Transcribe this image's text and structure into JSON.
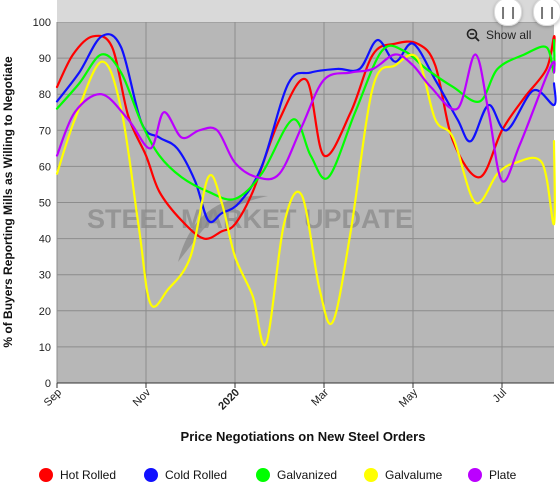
{
  "chart_data": {
    "type": "line",
    "ylabel": "% of Buyers Reporting Mills as Willing to Negotiate",
    "xlabel": "Price Negotiations on New Steel Orders",
    "watermark": "STEEL MARKET UPDATE",
    "ylim": [
      0,
      100
    ],
    "yticks": [
      0,
      10,
      20,
      30,
      40,
      50,
      60,
      70,
      80,
      90,
      100
    ],
    "xticks": [
      "Sep",
      "Nov",
      "2020",
      "Mar",
      "May",
      "Jul"
    ],
    "grid": true,
    "legend_position": "bottom",
    "colors": {
      "Hot Rolled": "#ff0000",
      "Cold Rolled": "#1010ff",
      "Galvanized": "#00ff00",
      "Galvalume": "#ffff00",
      "Plate": "#bb00ff"
    },
    "series": [
      {
        "name": "Hot Rolled",
        "values": [
          [
            0,
            82
          ],
          [
            0.18,
            91
          ],
          [
            0.4,
            96
          ],
          [
            0.62,
            93
          ],
          [
            0.8,
            74
          ],
          [
            1.0,
            63
          ],
          [
            1.15,
            53
          ],
          [
            1.4,
            45
          ],
          [
            1.65,
            40
          ],
          [
            1.85,
            42
          ],
          [
            2.0,
            44
          ],
          [
            2.2,
            53
          ],
          [
            2.5,
            73
          ],
          [
            2.8,
            84
          ],
          [
            3.0,
            63
          ],
          [
            3.3,
            75
          ],
          [
            3.55,
            91
          ],
          [
            3.8,
            94
          ],
          [
            4.05,
            94
          ],
          [
            4.25,
            88
          ],
          [
            4.45,
            67
          ],
          [
            4.75,
            57
          ],
          [
            5.0,
            70
          ],
          [
            5.25,
            79
          ],
          [
            5.5,
            87
          ],
          [
            5.75,
            96
          ],
          [
            5.92,
            92
          ]
        ]
      },
      {
        "name": "Cold Rolled",
        "values": [
          [
            0,
            78
          ],
          [
            0.25,
            86
          ],
          [
            0.5,
            96
          ],
          [
            0.72,
            93
          ],
          [
            0.95,
            72
          ],
          [
            1.15,
            68
          ],
          [
            1.35,
            65
          ],
          [
            1.55,
            56
          ],
          [
            1.7,
            45
          ],
          [
            1.85,
            47
          ],
          [
            2.05,
            50
          ],
          [
            2.3,
            60
          ],
          [
            2.6,
            83
          ],
          [
            2.85,
            86
          ],
          [
            3.15,
            87
          ],
          [
            3.4,
            87
          ],
          [
            3.6,
            95
          ],
          [
            3.8,
            89
          ],
          [
            4.0,
            94
          ],
          [
            4.25,
            84
          ],
          [
            4.5,
            73
          ],
          [
            4.65,
            67
          ],
          [
            4.85,
            77
          ],
          [
            5.05,
            70
          ],
          [
            5.35,
            81
          ],
          [
            5.65,
            77
          ],
          [
            5.92,
            83
          ]
        ]
      },
      {
        "name": "Galvanized",
        "values": [
          [
            0,
            76
          ],
          [
            0.25,
            83
          ],
          [
            0.5,
            91
          ],
          [
            0.72,
            86
          ],
          [
            0.95,
            72
          ],
          [
            1.15,
            63
          ],
          [
            1.4,
            57
          ],
          [
            1.7,
            53
          ],
          [
            2.0,
            51
          ],
          [
            2.3,
            58
          ],
          [
            2.65,
            73
          ],
          [
            2.85,
            63
          ],
          [
            3.05,
            57
          ],
          [
            3.35,
            75
          ],
          [
            3.65,
            92
          ],
          [
            3.9,
            92
          ],
          [
            4.15,
            87
          ],
          [
            4.45,
            82
          ],
          [
            4.75,
            78
          ],
          [
            4.95,
            87
          ],
          [
            5.25,
            91
          ],
          [
            5.5,
            93
          ],
          [
            5.7,
            86
          ],
          [
            5.92,
            95
          ]
        ]
      },
      {
        "name": "Galvalume",
        "values": [
          [
            0,
            58
          ],
          [
            0.2,
            73
          ],
          [
            0.5,
            89
          ],
          [
            0.72,
            76
          ],
          [
            0.92,
            43
          ],
          [
            1.05,
            22
          ],
          [
            1.25,
            26
          ],
          [
            1.5,
            35
          ],
          [
            1.7,
            57
          ],
          [
            1.85,
            50
          ],
          [
            2.0,
            35
          ],
          [
            2.2,
            24
          ],
          [
            2.35,
            11
          ],
          [
            2.55,
            44
          ],
          [
            2.75,
            52
          ],
          [
            2.95,
            26
          ],
          [
            3.1,
            17
          ],
          [
            3.3,
            42
          ],
          [
            3.55,
            82
          ],
          [
            3.8,
            88
          ],
          [
            4.05,
            90
          ],
          [
            4.25,
            73
          ],
          [
            4.45,
            68
          ],
          [
            4.7,
            50
          ],
          [
            4.95,
            58
          ],
          [
            5.15,
            61
          ],
          [
            5.45,
            61
          ],
          [
            5.65,
            44
          ],
          [
            5.92,
            67
          ]
        ]
      },
      {
        "name": "Plate",
        "values": [
          [
            0,
            63
          ],
          [
            0.2,
            75
          ],
          [
            0.5,
            80
          ],
          [
            0.8,
            73
          ],
          [
            1.05,
            65
          ],
          [
            1.2,
            75
          ],
          [
            1.4,
            68
          ],
          [
            1.6,
            70
          ],
          [
            1.8,
            70
          ],
          [
            2.0,
            61
          ],
          [
            2.25,
            57
          ],
          [
            2.5,
            58
          ],
          [
            2.75,
            71
          ],
          [
            3.0,
            84
          ],
          [
            3.3,
            86
          ],
          [
            3.55,
            87
          ],
          [
            3.8,
            91
          ],
          [
            4.0,
            88
          ],
          [
            4.2,
            82
          ],
          [
            4.5,
            76
          ],
          [
            4.7,
            91
          ],
          [
            4.85,
            75
          ],
          [
            5.0,
            56
          ],
          [
            5.2,
            66
          ],
          [
            5.5,
            85
          ],
          [
            5.7,
            89
          ],
          [
            5.92,
            86
          ]
        ]
      }
    ]
  },
  "controls": {
    "show_all_label": "Show all"
  }
}
